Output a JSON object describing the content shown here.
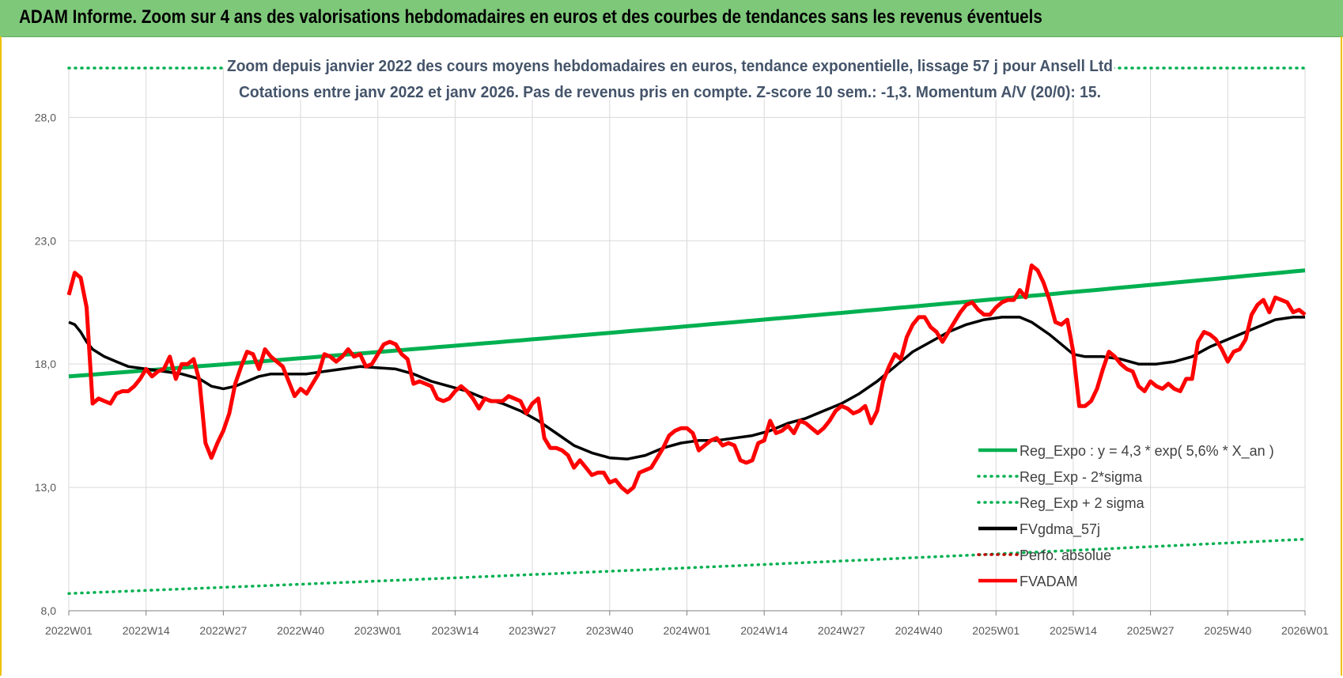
{
  "header": {
    "title": "ADAM Informe. Zoom sur 4 ans des valorisations hebdomadaires en euros et des courbes de tendances sans les revenus éventuels"
  },
  "chart_data": {
    "type": "line",
    "title": "Zoom depuis janvier 2022 des cours moyens hebdomadaires en euros, tendance exponentielle, lissage 57 j pour Ansell Ltd",
    "subtitle": "Cotations entre janv 2022 et janv 2026. Pas de revenus pris en compte. Z-score 10 sem.: -1,3. Momentum A/V (20/0): 15.",
    "xlabel": "",
    "ylabel": "",
    "ylim": [
      8,
      30
    ],
    "yticks": [
      "8,0",
      "13,0",
      "18,0",
      "23,0",
      "28,0"
    ],
    "yticks_values": [
      8,
      13,
      18,
      23,
      28
    ],
    "x_ticks": [
      "2022W01",
      "2022W14",
      "2022W27",
      "2022W40",
      "2023W01",
      "2023W14",
      "2023W27",
      "2023W40",
      "2024W01",
      "2024W14",
      "2024W27",
      "2024W40",
      "2025W01",
      "2025W14",
      "2025W27",
      "2025W40",
      "2026W01"
    ],
    "x_tick_week_index": [
      0,
      13,
      26,
      39,
      52,
      65,
      78,
      91,
      104,
      117,
      130,
      143,
      156,
      169,
      182,
      195,
      208
    ],
    "grid": true,
    "legend_position": "right",
    "series": [
      {
        "name": "Reg_Expo : y = 4,3 * exp( 5,6% *  X_an )",
        "color": "#00b050",
        "style": "solid",
        "start": 17.5,
        "end": 21.8
      },
      {
        "name": "Reg_Exp - 2*sigma",
        "color": "#00b050",
        "style": "dotted",
        "start": 8.7,
        "end": 10.9
      },
      {
        "name": "Reg_Exp + 2 sigma",
        "color": "#00b050",
        "style": "dotted",
        "start": 30.0,
        "end": 30.0
      },
      {
        "name": "FVgdma_57j",
        "color": "#000000",
        "style": "solid",
        "points": [
          [
            0,
            19.7
          ],
          [
            1,
            19.6
          ],
          [
            2,
            19.3
          ],
          [
            3,
            18.9
          ],
          [
            4,
            18.6
          ],
          [
            6,
            18.3
          ],
          [
            8,
            18.1
          ],
          [
            10,
            17.9
          ],
          [
            13,
            17.8
          ],
          [
            16,
            17.7
          ],
          [
            19,
            17.6
          ],
          [
            22,
            17.4
          ],
          [
            24,
            17.1
          ],
          [
            26,
            17.0
          ],
          [
            28,
            17.1
          ],
          [
            30,
            17.3
          ],
          [
            32,
            17.5
          ],
          [
            34,
            17.6
          ],
          [
            37,
            17.6
          ],
          [
            40,
            17.6
          ],
          [
            43,
            17.7
          ],
          [
            46,
            17.8
          ],
          [
            49,
            17.9
          ],
          [
            52,
            17.85
          ],
          [
            55,
            17.8
          ],
          [
            58,
            17.6
          ],
          [
            61,
            17.3
          ],
          [
            64,
            17.1
          ],
          [
            67,
            16.9
          ],
          [
            70,
            16.6
          ],
          [
            73,
            16.4
          ],
          [
            76,
            16.1
          ],
          [
            79,
            15.7
          ],
          [
            82,
            15.2
          ],
          [
            85,
            14.7
          ],
          [
            88,
            14.4
          ],
          [
            91,
            14.2
          ],
          [
            94,
            14.15
          ],
          [
            97,
            14.3
          ],
          [
            100,
            14.6
          ],
          [
            103,
            14.8
          ],
          [
            106,
            14.9
          ],
          [
            109,
            14.9
          ],
          [
            112,
            15.0
          ],
          [
            115,
            15.1
          ],
          [
            118,
            15.3
          ],
          [
            121,
            15.6
          ],
          [
            124,
            15.8
          ],
          [
            127,
            16.1
          ],
          [
            130,
            16.4
          ],
          [
            133,
            16.8
          ],
          [
            136,
            17.3
          ],
          [
            139,
            17.9
          ],
          [
            142,
            18.5
          ],
          [
            145,
            18.9
          ],
          [
            148,
            19.3
          ],
          [
            151,
            19.6
          ],
          [
            154,
            19.8
          ],
          [
            157,
            19.9
          ],
          [
            160,
            19.9
          ],
          [
            162,
            19.7
          ],
          [
            165,
            19.2
          ],
          [
            167,
            18.8
          ],
          [
            169,
            18.4
          ],
          [
            171,
            18.3
          ],
          [
            174,
            18.3
          ],
          [
            177,
            18.2
          ],
          [
            180,
            18.0
          ],
          [
            183,
            18.0
          ],
          [
            186,
            18.1
          ],
          [
            189,
            18.3
          ],
          [
            192,
            18.7
          ],
          [
            195,
            19.0
          ],
          [
            198,
            19.3
          ],
          [
            200,
            19.5
          ],
          [
            203,
            19.8
          ],
          [
            206,
            19.9
          ],
          [
            208,
            19.9
          ]
        ]
      },
      {
        "name": "Perfo. absolue",
        "color": "#c00000",
        "style": "dotted"
      },
      {
        "name": "FVADAM",
        "color": "#ff0000",
        "style": "solid",
        "points": [
          [
            0,
            20.8
          ],
          [
            1,
            21.7
          ],
          [
            2,
            21.5
          ],
          [
            3,
            20.3
          ],
          [
            4,
            16.4
          ],
          [
            5,
            16.6
          ],
          [
            6,
            16.5
          ],
          [
            7,
            16.4
          ],
          [
            8,
            16.8
          ],
          [
            9,
            16.9
          ],
          [
            10,
            16.9
          ],
          [
            11,
            17.1
          ],
          [
            12,
            17.4
          ],
          [
            13,
            17.8
          ],
          [
            14,
            17.5
          ],
          [
            15,
            17.7
          ],
          [
            16,
            17.8
          ],
          [
            17,
            18.3
          ],
          [
            18,
            17.4
          ],
          [
            19,
            18.0
          ],
          [
            20,
            18.0
          ],
          [
            21,
            18.2
          ],
          [
            22,
            17.3
          ],
          [
            23,
            14.8
          ],
          [
            24,
            14.2
          ],
          [
            25,
            14.8
          ],
          [
            26,
            15.3
          ],
          [
            27,
            16.0
          ],
          [
            28,
            17.2
          ],
          [
            29,
            17.9
          ],
          [
            30,
            18.5
          ],
          [
            31,
            18.4
          ],
          [
            32,
            17.8
          ],
          [
            33,
            18.6
          ],
          [
            34,
            18.3
          ],
          [
            35,
            18.1
          ],
          [
            36,
            17.9
          ],
          [
            37,
            17.3
          ],
          [
            38,
            16.7
          ],
          [
            39,
            17.0
          ],
          [
            40,
            16.8
          ],
          [
            41,
            17.2
          ],
          [
            42,
            17.6
          ],
          [
            43,
            18.4
          ],
          [
            44,
            18.3
          ],
          [
            45,
            18.1
          ],
          [
            46,
            18.3
          ],
          [
            47,
            18.6
          ],
          [
            48,
            18.3
          ],
          [
            49,
            18.4
          ],
          [
            50,
            17.9
          ],
          [
            51,
            18.0
          ],
          [
            52,
            18.4
          ],
          [
            53,
            18.8
          ],
          [
            54,
            18.9
          ],
          [
            55,
            18.8
          ],
          [
            56,
            18.4
          ],
          [
            57,
            18.2
          ],
          [
            58,
            17.2
          ],
          [
            59,
            17.3
          ],
          [
            60,
            17.2
          ],
          [
            61,
            17.1
          ],
          [
            62,
            16.6
          ],
          [
            63,
            16.5
          ],
          [
            64,
            16.6
          ],
          [
            65,
            16.9
          ],
          [
            66,
            17.1
          ],
          [
            67,
            16.9
          ],
          [
            68,
            16.6
          ],
          [
            69,
            16.2
          ],
          [
            70,
            16.6
          ],
          [
            71,
            16.5
          ],
          [
            72,
            16.5
          ],
          [
            73,
            16.5
          ],
          [
            74,
            16.7
          ],
          [
            75,
            16.6
          ],
          [
            76,
            16.5
          ],
          [
            77,
            16.0
          ],
          [
            78,
            16.4
          ],
          [
            79,
            16.6
          ],
          [
            80,
            15.0
          ],
          [
            81,
            14.6
          ],
          [
            82,
            14.6
          ],
          [
            83,
            14.5
          ],
          [
            84,
            14.3
          ],
          [
            85,
            13.8
          ],
          [
            86,
            14.1
          ],
          [
            87,
            13.8
          ],
          [
            88,
            13.5
          ],
          [
            89,
            13.6
          ],
          [
            90,
            13.6
          ],
          [
            91,
            13.2
          ],
          [
            92,
            13.3
          ],
          [
            93,
            13.0
          ],
          [
            94,
            12.8
          ],
          [
            95,
            13.0
          ],
          [
            96,
            13.6
          ],
          [
            97,
            13.7
          ],
          [
            98,
            13.8
          ],
          [
            99,
            14.2
          ],
          [
            100,
            14.6
          ],
          [
            101,
            15.1
          ],
          [
            102,
            15.3
          ],
          [
            103,
            15.4
          ],
          [
            104,
            15.4
          ],
          [
            105,
            15.2
          ],
          [
            106,
            14.5
          ],
          [
            107,
            14.7
          ],
          [
            108,
            14.9
          ],
          [
            109,
            15.0
          ],
          [
            110,
            14.7
          ],
          [
            111,
            14.8
          ],
          [
            112,
            14.7
          ],
          [
            113,
            14.1
          ],
          [
            114,
            14.0
          ],
          [
            115,
            14.1
          ],
          [
            116,
            14.8
          ],
          [
            117,
            14.9
          ],
          [
            118,
            15.7
          ],
          [
            119,
            15.2
          ],
          [
            120,
            15.3
          ],
          [
            121,
            15.5
          ],
          [
            122,
            15.2
          ],
          [
            123,
            15.7
          ],
          [
            124,
            15.6
          ],
          [
            125,
            15.4
          ],
          [
            126,
            15.2
          ],
          [
            127,
            15.4
          ],
          [
            128,
            15.7
          ],
          [
            129,
            16.1
          ],
          [
            130,
            16.3
          ],
          [
            131,
            16.2
          ],
          [
            132,
            16.0
          ],
          [
            133,
            16.1
          ],
          [
            134,
            16.3
          ],
          [
            135,
            15.6
          ],
          [
            136,
            16.1
          ],
          [
            137,
            17.3
          ],
          [
            138,
            17.9
          ],
          [
            139,
            18.4
          ],
          [
            140,
            18.2
          ],
          [
            141,
            19.1
          ],
          [
            142,
            19.6
          ],
          [
            143,
            19.9
          ],
          [
            144,
            19.9
          ],
          [
            145,
            19.5
          ],
          [
            146,
            19.3
          ],
          [
            147,
            18.9
          ],
          [
            148,
            19.3
          ],
          [
            149,
            19.7
          ],
          [
            150,
            20.1
          ],
          [
            151,
            20.4
          ],
          [
            152,
            20.5
          ],
          [
            153,
            20.2
          ],
          [
            154,
            20.0
          ],
          [
            155,
            20.0
          ],
          [
            156,
            20.3
          ],
          [
            157,
            20.5
          ],
          [
            158,
            20.6
          ],
          [
            159,
            20.6
          ],
          [
            160,
            21.0
          ],
          [
            161,
            20.7
          ],
          [
            162,
            22.0
          ],
          [
            163,
            21.8
          ],
          [
            164,
            21.3
          ],
          [
            165,
            20.6
          ],
          [
            166,
            19.7
          ],
          [
            167,
            19.6
          ],
          [
            168,
            19.8
          ],
          [
            169,
            18.5
          ],
          [
            170,
            16.3
          ],
          [
            171,
            16.3
          ],
          [
            172,
            16.5
          ],
          [
            173,
            17.0
          ],
          [
            174,
            17.8
          ],
          [
            175,
            18.5
          ],
          [
            176,
            18.3
          ],
          [
            177,
            18.0
          ],
          [
            178,
            17.8
          ],
          [
            179,
            17.7
          ],
          [
            180,
            17.1
          ],
          [
            181,
            16.9
          ],
          [
            182,
            17.3
          ],
          [
            183,
            17.1
          ],
          [
            184,
            17.0
          ],
          [
            185,
            17.2
          ],
          [
            186,
            17.0
          ],
          [
            187,
            16.9
          ],
          [
            188,
            17.4
          ],
          [
            189,
            17.4
          ],
          [
            190,
            18.9
          ],
          [
            191,
            19.3
          ],
          [
            192,
            19.2
          ],
          [
            193,
            19.0
          ],
          [
            194,
            18.6
          ],
          [
            195,
            18.1
          ],
          [
            196,
            18.5
          ],
          [
            197,
            18.6
          ],
          [
            198,
            19.0
          ],
          [
            199,
            20.0
          ],
          [
            200,
            20.4
          ],
          [
            201,
            20.6
          ],
          [
            202,
            20.1
          ],
          [
            203,
            20.7
          ],
          [
            204,
            20.6
          ],
          [
            205,
            20.5
          ],
          [
            206,
            20.1
          ],
          [
            207,
            20.2
          ],
          [
            208,
            20.0
          ]
        ]
      }
    ]
  },
  "colors": {
    "header_bg": "#7ec87a",
    "frame": "#f0c000",
    "grid": "#d9d9d9"
  }
}
